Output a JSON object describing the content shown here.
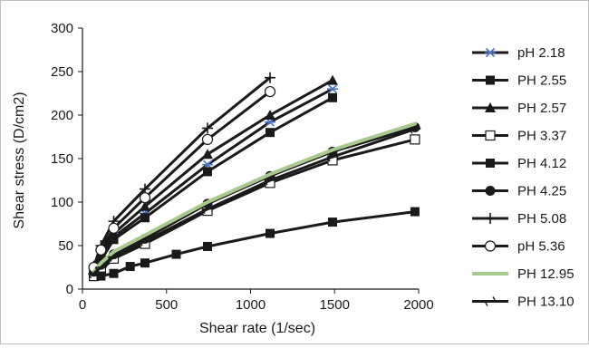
{
  "chart_data": {
    "type": "line",
    "title": "",
    "xlabel": "Shear rate (1/sec)",
    "ylabel": "Shear stress (D/cm2)",
    "xlim": [
      0,
      2000
    ],
    "ylim": [
      0,
      300
    ],
    "x_ticks": [
      "0",
      "500",
      "1000",
      "1500",
      "2000"
    ],
    "y_ticks": [
      "0",
      "50",
      "100",
      "150",
      "200",
      "250",
      "300"
    ],
    "grid": false,
    "legend_position": "right",
    "series": [
      {
        "name": "pH 2.18",
        "marker": "asterisk",
        "color": "#1a1a1a",
        "marker_color": "#4a78c2",
        "x": [
          68,
          110,
          186,
          372,
          744,
          1116,
          1488
        ],
        "y": [
          24,
          36,
          60,
          87,
          143,
          192,
          230
        ]
      },
      {
        "name": "PH 2.55",
        "marker": "square",
        "color": "#1a1a1a",
        "marker_color": "#1a1a1a",
        "x": [
          68,
          110,
          186,
          372,
          744,
          1116,
          1488
        ],
        "y": [
          22,
          33,
          57,
          82,
          135,
          180,
          220
        ]
      },
      {
        "name": "PH 2.57",
        "marker": "triangle",
        "color": "#1a1a1a",
        "marker_color": "#1a1a1a",
        "x": [
          68,
          110,
          186,
          372,
          744,
          1116,
          1488
        ],
        "y": [
          27,
          42,
          64,
          95,
          155,
          200,
          240
        ]
      },
      {
        "name": "PH 3.37",
        "marker": "square-open",
        "color": "#1a1a1a",
        "marker_color": "#1a1a1a",
        "x": [
          68,
          110,
          186,
          372,
          744,
          1116,
          1488,
          1978
        ],
        "y": [
          15,
          22,
          35,
          52,
          90,
          122,
          148,
          172
        ]
      },
      {
        "name": "PH 4.12",
        "marker": "square",
        "color": "#1a1a1a",
        "marker_color": "#1a1a1a",
        "x": [
          68,
          110,
          186,
          284,
          372,
          558,
          744,
          1116,
          1488,
          1978
        ],
        "y": [
          22,
          15,
          18,
          26,
          30,
          40,
          49,
          64,
          77,
          89
        ]
      },
      {
        "name": "PH 4.25",
        "marker": "circle",
        "color": "#1a1a1a",
        "marker_color": "#1a1a1a",
        "x": [
          68,
          110,
          186,
          372,
          744,
          1116,
          1488,
          1978
        ],
        "y": [
          20,
          28,
          40,
          58,
          98,
          130,
          158,
          186
        ]
      },
      {
        "name": "PH 5.08",
        "marker": "plus",
        "color": "#1a1a1a",
        "marker_color": "#1a1a1a",
        "x": [
          68,
          110,
          186,
          372,
          744,
          1116
        ],
        "y": [
          26,
          50,
          78,
          115,
          185,
          243
        ]
      },
      {
        "name": "pH 5.36",
        "marker": "circle-open",
        "color": "#1a1a1a",
        "marker_color": "#1a1a1a",
        "x": [
          68,
          110,
          186,
          372,
          744,
          1116
        ],
        "y": [
          25,
          45,
          70,
          105,
          172,
          227
        ]
      },
      {
        "name": "PH 12.95",
        "marker": "none",
        "color": "#a8c98e",
        "marker_color": "#a8c98e",
        "x": [
          68,
          110,
          186,
          372,
          744,
          1116,
          1488,
          1978
        ],
        "y": [
          20,
          30,
          43,
          62,
          100,
          132,
          160,
          190
        ]
      },
      {
        "name": "PH 13.10",
        "marker": "dash",
        "color": "#1a1a1a",
        "marker_color": "#1a1a1a",
        "x": [
          68,
          110,
          186,
          372,
          744,
          1116,
          1488,
          1978
        ],
        "y": [
          18,
          25,
          37,
          55,
          92,
          125,
          152,
          184
        ]
      }
    ]
  }
}
